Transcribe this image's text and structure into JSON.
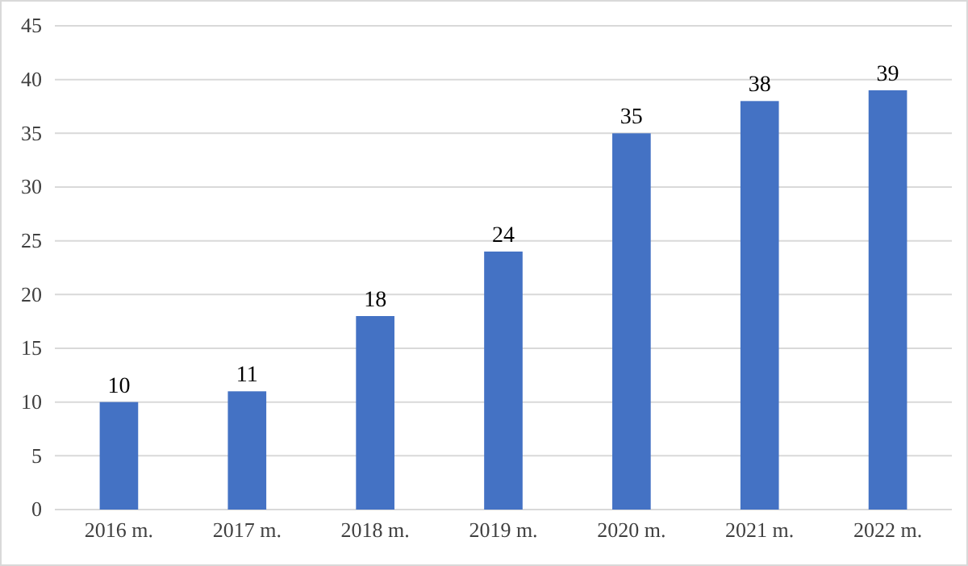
{
  "chart_data": {
    "type": "bar",
    "categories": [
      "2016 m.",
      "2017 m.",
      "2018 m.",
      "2019 m.",
      "2020 m.",
      "2021 m.",
      "2022 m."
    ],
    "values": [
      10,
      11,
      18,
      24,
      35,
      38,
      39
    ],
    "color": "#4472c4",
    "ylim": [
      0,
      45
    ],
    "yticks": [
      0,
      5,
      10,
      15,
      20,
      25,
      30,
      35,
      40,
      45
    ],
    "grid": "y",
    "data_labels": true
  }
}
